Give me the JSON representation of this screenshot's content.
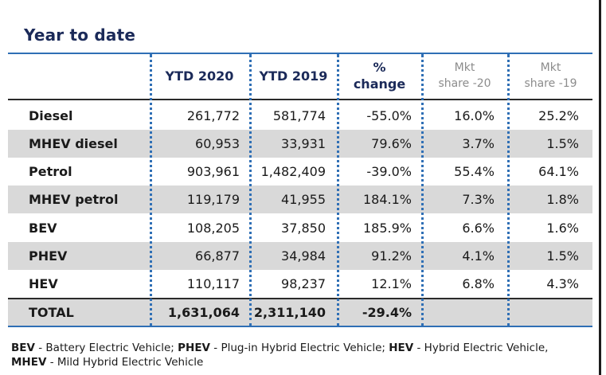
{
  "title": "Year to date",
  "headers": {
    "ytd2020": "YTD 2020",
    "ytd2019": "YTD 2019",
    "change_line1": "%",
    "change_line2": "change",
    "share20_line1": "Mkt",
    "share20_line2": "share -20",
    "share19_line1": "Mkt",
    "share19_line2": "share -19"
  },
  "rows": [
    {
      "name": "Diesel",
      "ytd2020": "261,772",
      "ytd2019": "581,774",
      "change": "-55.0%",
      "share20": "16.0%",
      "share19": "25.2%"
    },
    {
      "name": "MHEV diesel",
      "ytd2020": "60,953",
      "ytd2019": "33,931",
      "change": "79.6%",
      "share20": "3.7%",
      "share19": "1.5%"
    },
    {
      "name": "Petrol",
      "ytd2020": "903,961",
      "ytd2019": "1,482,409",
      "change": "-39.0%",
      "share20": "55.4%",
      "share19": "64.1%"
    },
    {
      "name": "MHEV petrol",
      "ytd2020": "119,179",
      "ytd2019": "41,955",
      "change": "184.1%",
      "share20": "7.3%",
      "share19": "1.8%"
    },
    {
      "name": "BEV",
      "ytd2020": "108,205",
      "ytd2019": "37,850",
      "change": "185.9%",
      "share20": "6.6%",
      "share19": "1.6%"
    },
    {
      "name": "PHEV",
      "ytd2020": "66,877",
      "ytd2019": "34,984",
      "change": "91.2%",
      "share20": "4.1%",
      "share19": "1.5%"
    },
    {
      "name": "HEV",
      "ytd2020": "110,117",
      "ytd2019": "98,237",
      "change": "12.1%",
      "share20": "6.8%",
      "share19": "4.3%"
    }
  ],
  "total": {
    "name": "TOTAL",
    "ytd2020": "1,631,064",
    "ytd2019": "2,311,140",
    "change": "-29.4%"
  },
  "footnote": {
    "bev_abbr": "BEV",
    "bev_text": " - Battery Electric Vehicle; ",
    "phev_abbr": "PHEV",
    "phev_text": " - Plug-in Hybrid Electric Vehicle; ",
    "hev_abbr": "HEV",
    "hev_text": " - Hybrid Electric Vehicle,",
    "mhev_abbr": "MHEV",
    "mhev_text": " - Mild Hybrid Electric Vehicle"
  },
  "colors": {
    "title": "#1b2a59",
    "rule": "#2f6fb5",
    "shade": "#d9d9d9",
    "muted_header": "#8c8c8c"
  }
}
